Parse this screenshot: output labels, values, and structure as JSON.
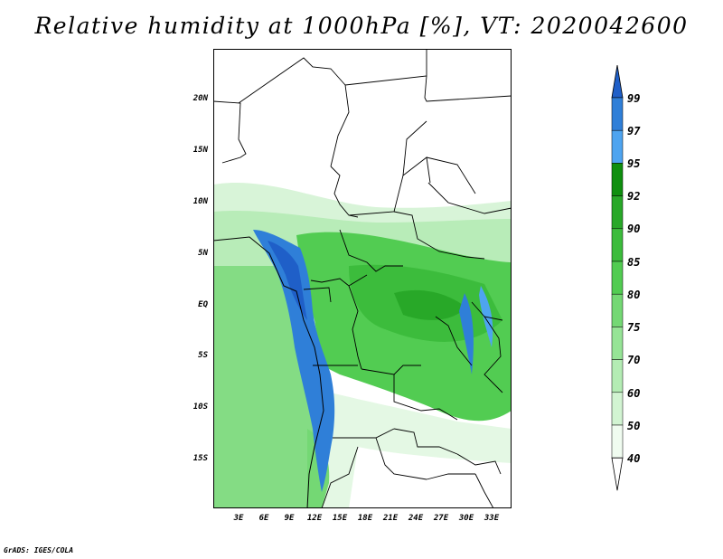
{
  "title": "Relative humidity at 1000hPa [%], VT: 2020042600",
  "credit": "GrADS: IGES/COLA",
  "map": {
    "lat_ticks": [
      "20N",
      "15N",
      "10N",
      "5N",
      "EQ",
      "5S",
      "10S",
      "15S"
    ],
    "lon_ticks": [
      "3E",
      "6E",
      "9E",
      "12E",
      "15E",
      "18E",
      "21E",
      "24E",
      "27E",
      "30E",
      "33E"
    ]
  },
  "colorbar": {
    "labels": [
      "99",
      "97",
      "95",
      "92",
      "90",
      "85",
      "80",
      "75",
      "70",
      "60",
      "50",
      "40"
    ],
    "colors": [
      "#1f5fc8",
      "#2f7fd8",
      "#4ea4f0",
      "#0f8f0f",
      "#28a828",
      "#3cbc3c",
      "#52cc52",
      "#74d874",
      "#96e496",
      "#b4ecb4",
      "#d2f4d2",
      "#f0fcf0"
    ]
  }
}
